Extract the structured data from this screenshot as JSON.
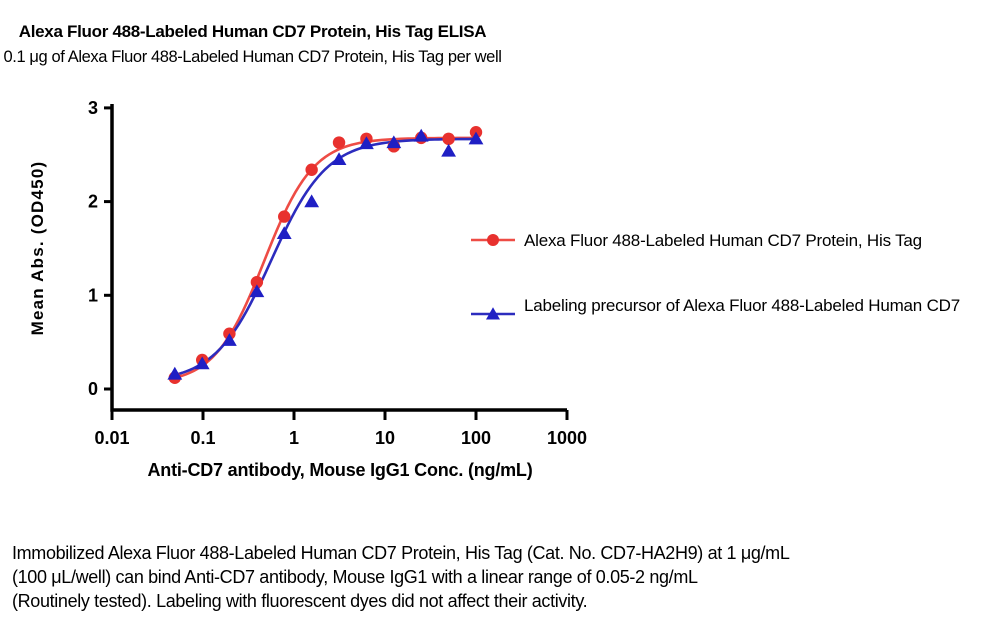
{
  "header": {
    "title": "Alexa Fluor 488-Labeled Human CD7 Protein, His Tag ELISA",
    "subtitle": "0.1 μg of Alexa Fluor 488-Labeled Human CD7 Protein, His Tag per well"
  },
  "chart_data": {
    "type": "line",
    "title": "Alexa Fluor 488-Labeled Human CD7 Protein, His Tag ELISA",
    "subtitle": "0.1 μg of Alexa Fluor 488-Labeled Human CD7 Protein, His Tag per well",
    "xlabel": "Anti-CD7 antibody, Mouse IgG1 Conc. (ng/mL)",
    "ylabel": "Mean Abs. (OD450)",
    "x_scale": "log10",
    "xlim": [
      0.01,
      1000
    ],
    "ylim": [
      0,
      3
    ],
    "grid": false,
    "legend_position": "right",
    "x_tick_values": [
      0.01,
      0.1,
      1,
      10,
      100,
      1000
    ],
    "x_tick_labels": [
      "0.01",
      "0.1",
      "1",
      "10",
      "100",
      "1000"
    ],
    "y_tick_values": [
      0,
      1,
      2,
      3
    ],
    "y_tick_labels": [
      "0",
      "1",
      "2",
      "3"
    ],
    "x": [
      0.049,
      0.098,
      0.195,
      0.391,
      0.781,
      1.563,
      3.125,
      6.25,
      12.5,
      25,
      50,
      100
    ],
    "series": [
      {
        "name": "Alexa Fluor 488-Labeled Human CD7 Protein, His Tag",
        "marker": "circle",
        "marker_color": "#e8312e",
        "line_color": "#ee4c45",
        "values": [
          0.12,
          0.31,
          0.59,
          1.14,
          1.84,
          2.34,
          2.63,
          2.67,
          2.59,
          2.68,
          2.67,
          2.74
        ],
        "fit_4pl": {
          "bottom": 0.05,
          "top": 2.68,
          "ec50": 0.47,
          "hill": 1.6
        }
      },
      {
        "name": "Labeling precursor of Alexa Fluor 488-Labeled Human CD7",
        "marker": "triangle",
        "marker_color": "#1f1fc4",
        "line_color": "#2c2cbe",
        "values": [
          0.16,
          0.27,
          0.52,
          1.04,
          1.66,
          2.0,
          2.45,
          2.62,
          2.63,
          2.7,
          2.54,
          2.67
        ],
        "fit_4pl": {
          "bottom": 0.07,
          "top": 2.67,
          "ec50": 0.56,
          "hill": 1.42
        }
      }
    ],
    "axis_color": "#000000",
    "background_color": "#ffffff"
  },
  "caption": {
    "lines": [
      "Immobilized Alexa Fluor 488-Labeled Human CD7 Protein, His Tag (Cat. No. CD7-HA2H9) at 1 μg/mL",
      "(100 μL/well) can bind Anti-CD7 antibody, Mouse IgG1 with a linear range of 0.05-2 ng/mL",
      "(Routinely tested). Labeling with fluorescent dyes did not affect their activity."
    ]
  }
}
